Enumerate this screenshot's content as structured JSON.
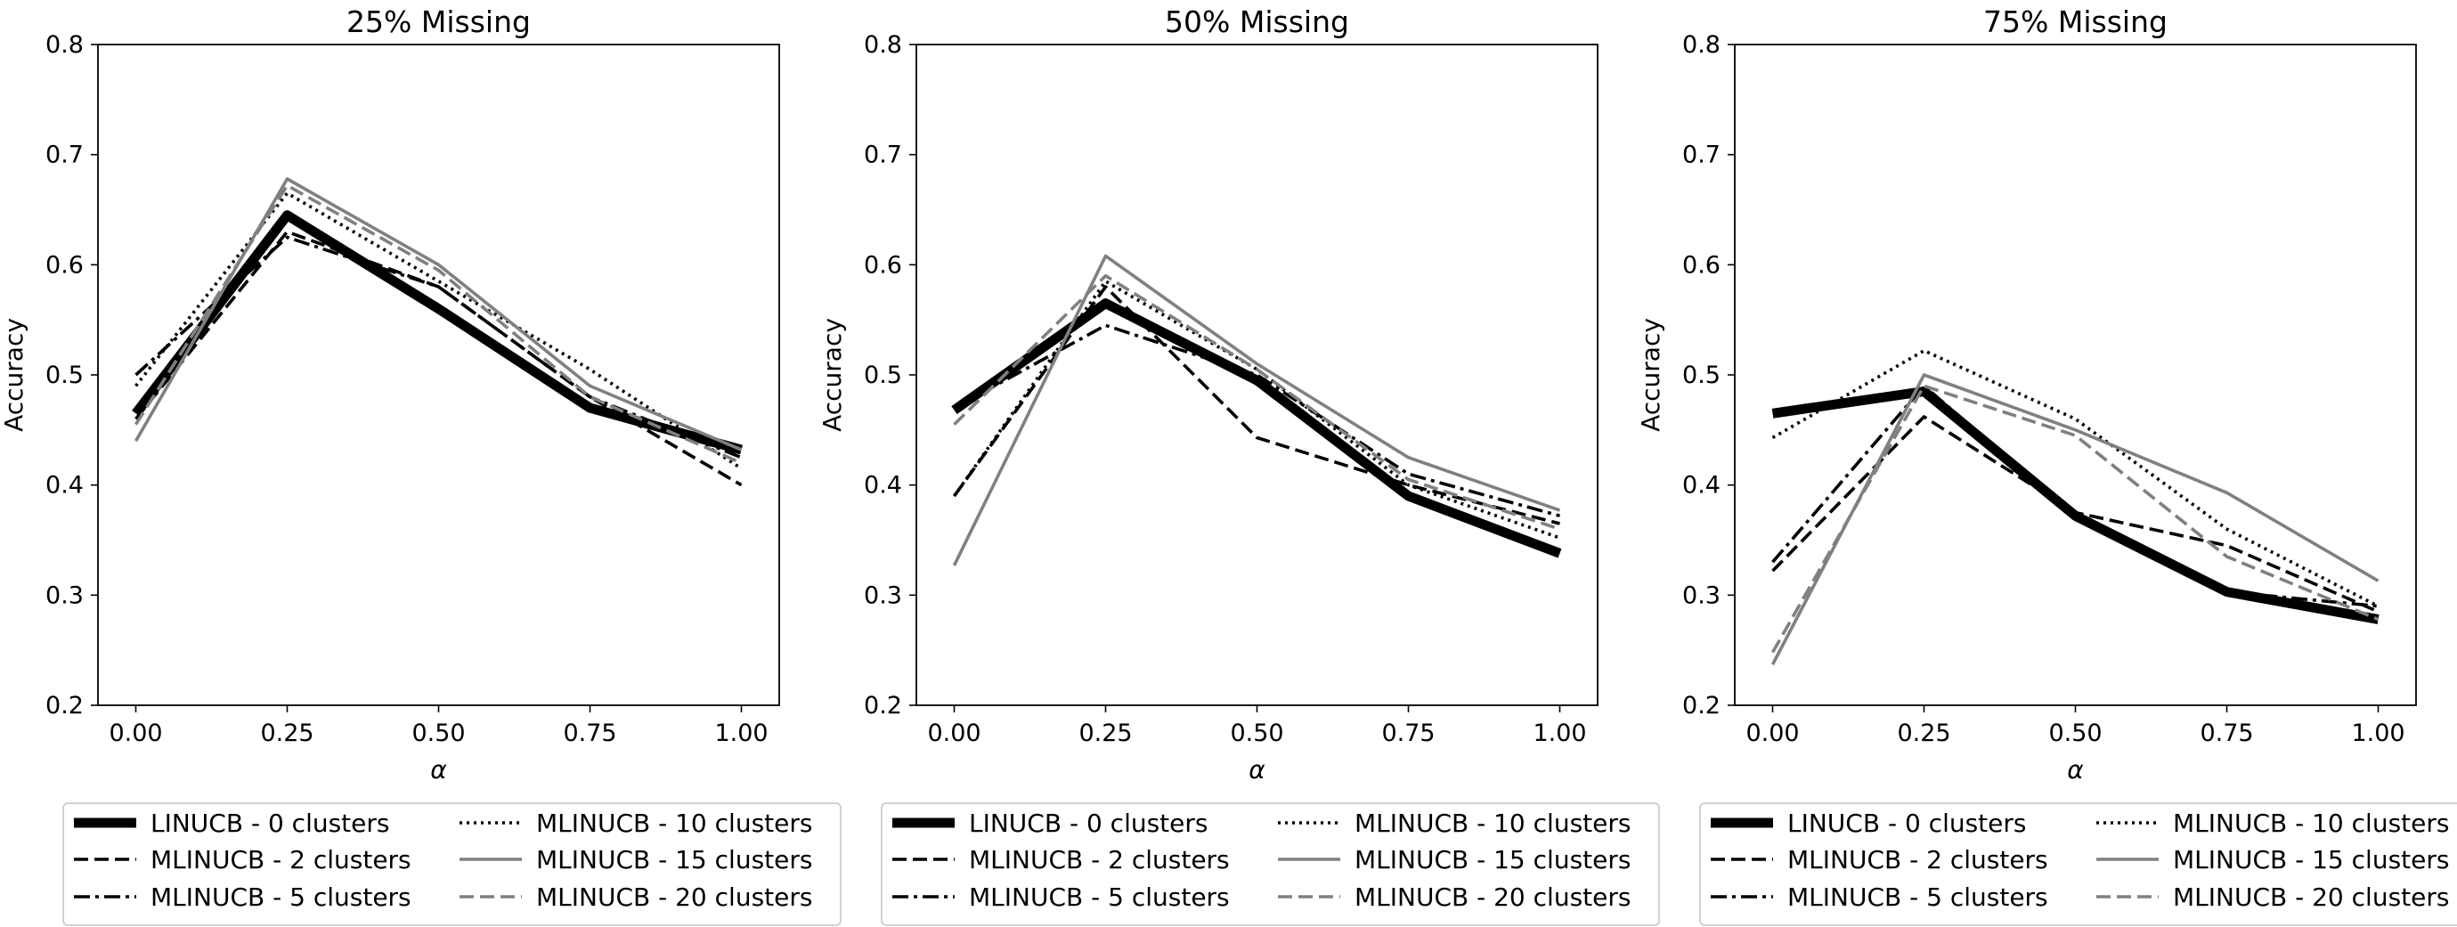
{
  "chart_data": [
    {
      "type": "line",
      "title": "25% Missing",
      "xlabel": "α",
      "ylabel": "Accuracy",
      "x": [
        0.0,
        0.25,
        0.5,
        0.75,
        1.0
      ],
      "xticks": [
        "0.00",
        "0.25",
        "0.50",
        "0.75",
        "1.00"
      ],
      "yticks": [
        "0.2",
        "0.3",
        "0.4",
        "0.5",
        "0.6",
        "0.7",
        "0.8"
      ],
      "xlim": [
        -0.0625,
        1.0625
      ],
      "ylim": [
        0.2,
        0.8
      ],
      "grid": false,
      "legend_position": "below",
      "series": [
        {
          "name": "LINUCB - 0 clusters",
          "values": [
            0.465,
            0.645,
            0.56,
            0.47,
            0.432
          ]
        },
        {
          "name": "MLINUCB - 2 clusters",
          "values": [
            0.46,
            0.63,
            0.58,
            0.48,
            0.4
          ]
        },
        {
          "name": "MLINUCB - 5 clusters",
          "values": [
            0.5,
            0.625,
            0.58,
            0.48,
            0.425
          ]
        },
        {
          "name": "MLINUCB - 10 clusters",
          "values": [
            0.49,
            0.665,
            0.585,
            0.505,
            0.415
          ]
        },
        {
          "name": "MLINUCB - 15 clusters",
          "values": [
            0.44,
            0.678,
            0.6,
            0.49,
            0.432
          ]
        },
        {
          "name": "MLINUCB - 20 clusters",
          "values": [
            0.455,
            0.672,
            0.595,
            0.48,
            0.42
          ]
        }
      ]
    },
    {
      "type": "line",
      "title": "50% Missing",
      "xlabel": "α",
      "ylabel": "Accuracy",
      "x": [
        0.0,
        0.25,
        0.5,
        0.75,
        1.0
      ],
      "xticks": [
        "0.00",
        "0.25",
        "0.50",
        "0.75",
        "1.00"
      ],
      "yticks": [
        "0.2",
        "0.3",
        "0.4",
        "0.5",
        "0.6",
        "0.7",
        "0.8"
      ],
      "xlim": [
        -0.0625,
        1.0625
      ],
      "ylim": [
        0.2,
        0.8
      ],
      "grid": false,
      "legend_position": "below",
      "series": [
        {
          "name": "LINUCB - 0 clusters",
          "values": [
            0.468,
            0.565,
            0.495,
            0.39,
            0.338
          ]
        },
        {
          "name": "MLINUCB - 2 clusters",
          "values": [
            0.39,
            0.58,
            0.443,
            0.4,
            0.365
          ]
        },
        {
          "name": "MLINUCB - 5 clusters",
          "values": [
            0.47,
            0.545,
            0.5,
            0.41,
            0.372
          ]
        },
        {
          "name": "MLINUCB - 10 clusters",
          "values": [
            0.39,
            0.585,
            0.505,
            0.4,
            0.352
          ]
        },
        {
          "name": "MLINUCB - 15 clusters",
          "values": [
            0.327,
            0.608,
            0.51,
            0.425,
            0.377
          ]
        },
        {
          "name": "MLINUCB - 20 clusters",
          "values": [
            0.455,
            0.59,
            0.505,
            0.405,
            0.36
          ]
        }
      ]
    },
    {
      "type": "line",
      "title": "75% Missing",
      "xlabel": "α",
      "ylabel": "Accuracy",
      "x": [
        0.0,
        0.25,
        0.5,
        0.75,
        1.0
      ],
      "xticks": [
        "0.00",
        "0.25",
        "0.50",
        "0.75",
        "1.00"
      ],
      "yticks": [
        "0.2",
        "0.3",
        "0.4",
        "0.5",
        "0.6",
        "0.7",
        "0.8"
      ],
      "xlim": [
        -0.0625,
        1.0625
      ],
      "ylim": [
        0.2,
        0.8
      ],
      "grid": false,
      "legend_position": "below",
      "series": [
        {
          "name": "LINUCB - 0 clusters",
          "values": [
            0.465,
            0.485,
            0.372,
            0.303,
            0.278
          ]
        },
        {
          "name": "MLINUCB - 2 clusters",
          "values": [
            0.322,
            0.462,
            0.375,
            0.345,
            0.285
          ]
        },
        {
          "name": "MLINUCB - 5 clusters",
          "values": [
            0.33,
            0.49,
            0.372,
            0.303,
            0.29
          ]
        },
        {
          "name": "MLINUCB - 10 clusters",
          "values": [
            0.443,
            0.522,
            0.46,
            0.36,
            0.29
          ]
        },
        {
          "name": "MLINUCB - 15 clusters",
          "values": [
            0.237,
            0.5,
            0.45,
            0.393,
            0.313
          ]
        },
        {
          "name": "MLINUCB - 20 clusters",
          "values": [
            0.248,
            0.49,
            0.445,
            0.335,
            0.278
          ]
        }
      ]
    }
  ],
  "series_styles": [
    {
      "color": "#000000",
      "dash": "solid",
      "weight": "heavy"
    },
    {
      "color": "#000000",
      "dash": "dashed",
      "weight": "normal"
    },
    {
      "color": "#000000",
      "dash": "dashdot",
      "weight": "normal"
    },
    {
      "color": "#000000",
      "dash": "dotted",
      "weight": "normal"
    },
    {
      "color": "#808080",
      "dash": "solid",
      "weight": "normal"
    },
    {
      "color": "#808080",
      "dash": "dashed",
      "weight": "normal"
    }
  ]
}
